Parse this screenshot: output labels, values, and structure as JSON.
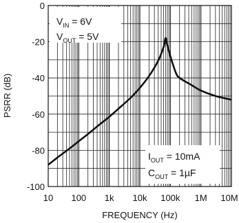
{
  "chart_data": {
    "type": "line",
    "title": "",
    "xlabel": "FREQUENCY (Hz)",
    "ylabel": "PSRR (dB)",
    "x_scale": "log",
    "xlim": [
      10,
      10000000
    ],
    "ylim": [
      -100,
      0
    ],
    "x_ticks": [
      {
        "value": 10,
        "label": "10"
      },
      {
        "value": 100,
        "label": "100"
      },
      {
        "value": 1000,
        "label": "1k"
      },
      {
        "value": 10000,
        "label": "10k"
      },
      {
        "value": 100000,
        "label": "100k"
      },
      {
        "value": 1000000,
        "label": "1M"
      },
      {
        "value": 10000000,
        "label": "10M"
      }
    ],
    "y_ticks": [
      0,
      -20,
      -40,
      -60,
      -80,
      -100
    ],
    "grid": true,
    "legend": "none",
    "line_color": "#111111",
    "series": [
      {
        "x": [
          10,
          20,
          50,
          100,
          200,
          500,
          1000,
          2000,
          5000,
          10000,
          20000,
          40000,
          60000,
          70000,
          80000,
          100000,
          150000,
          200000,
          500000,
          1000000,
          3000000,
          10000000
        ],
        "y": [
          -88,
          -84,
          -79,
          -75,
          -71,
          -65.5,
          -61.5,
          -57,
          -51,
          -45.5,
          -39,
          -30.5,
          -23,
          -18,
          -22,
          -28,
          -37,
          -40,
          -44,
          -47,
          -50,
          -52
        ]
      }
    ],
    "annotations": [
      {
        "position": "top-left",
        "lines": [
          {
            "main": "V",
            "sub": "IN",
            "rest": " = 6V"
          },
          {
            "main": "V",
            "sub": "OUT",
            "rest": " = 5V"
          }
        ]
      },
      {
        "position": "bottom-right",
        "lines": [
          {
            "main": "I",
            "sub": "OUT",
            "rest": " = 10mA"
          },
          {
            "main": "C",
            "sub": "OUT",
            "rest": " = 1µF"
          }
        ]
      }
    ]
  }
}
